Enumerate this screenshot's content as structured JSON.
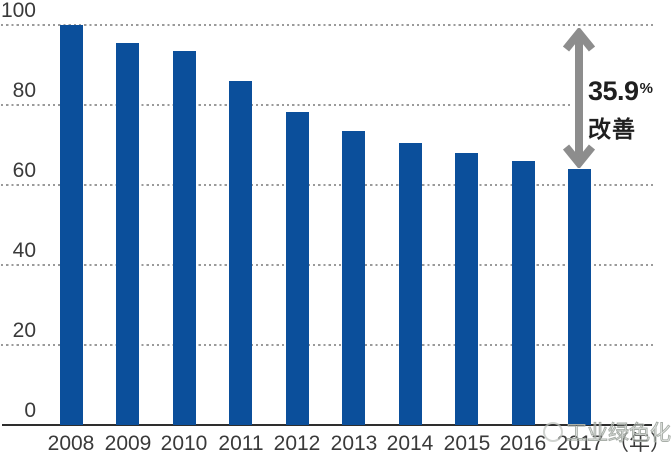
{
  "chart_data": {
    "type": "bar",
    "title": "",
    "categories": [
      "2008",
      "2009",
      "2010",
      "2011",
      "2012",
      "2013",
      "2014",
      "2015",
      "2016",
      "2017"
    ],
    "values": [
      100,
      95.4,
      93.5,
      86.1,
      78.3,
      73.5,
      70.4,
      67.9,
      65.9,
      64.1
    ],
    "xlabel": "（年）",
    "ylabel": "",
    "ylim": [
      0,
      100
    ],
    "yticks": [
      0,
      20,
      40,
      60,
      80,
      100
    ],
    "grid": "horizontal-dotted",
    "legend_position": "none",
    "bar_color": "#0b4f9b",
    "annotation": {
      "value": "35.9",
      "unit": "%",
      "label": "改善",
      "arrow": "double-headed-vertical-from-100-gridline-to-2017-bar"
    }
  },
  "watermark": {
    "text": "工业绿色化"
  },
  "colors": {
    "bar": "#0b4f9b",
    "gridline": "#9b9b9b",
    "axis": "#2e2e2e",
    "tick_label": "#3a3a3a",
    "arrow": "#8d8d8d",
    "annotation_text": "#1f1f1f",
    "watermark": "#a9afa9"
  }
}
